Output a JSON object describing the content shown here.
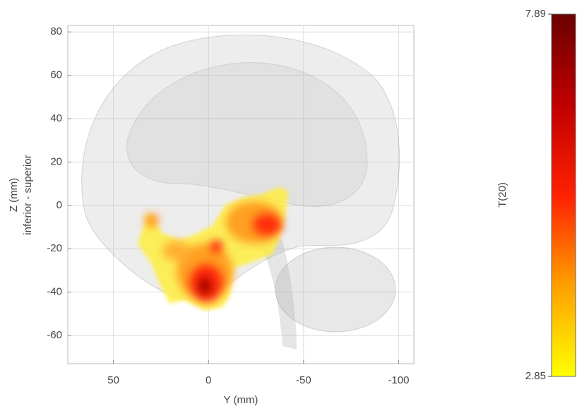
{
  "chart_data": {
    "type": "image",
    "xlabel": "Y (mm)",
    "ylabel": [
      "Z (mm)",
      "inferior - superior"
    ],
    "xlim": [
      74,
      -108
    ],
    "xticks": [
      50,
      0,
      -50,
      -100
    ],
    "ylim": [
      -73,
      83
    ],
    "yticks": [
      80,
      60,
      40,
      20,
      0,
      -20,
      -40,
      -60
    ],
    "grid": true,
    "colorbar": {
      "label": "T(20)",
      "clim": [
        2.85,
        7.89
      ],
      "ticks": [
        7.89,
        2.85
      ],
      "colormap": [
        "#ffff00",
        "#ffa000",
        "#ff2000",
        "#c00000",
        "#6b0000"
      ]
    }
  }
}
